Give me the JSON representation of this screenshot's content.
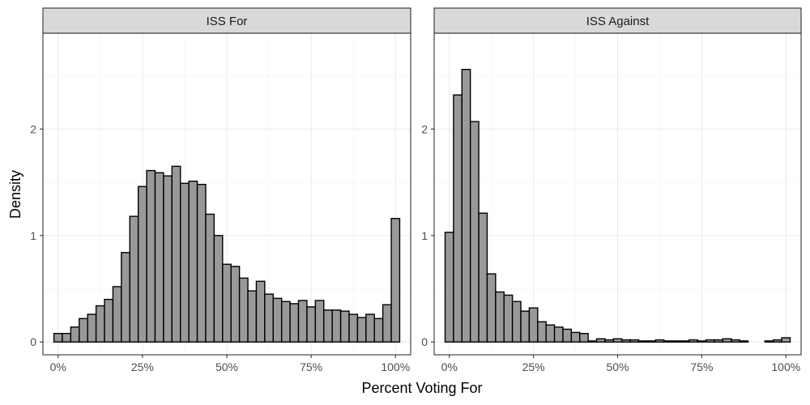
{
  "chart_data": {
    "type": "bar",
    "xlabel": "Percent Voting For",
    "ylabel": "Density",
    "xlim": [
      0,
      1
    ],
    "ylim": [
      0,
      2.75
    ],
    "x_ticks": [
      0,
      0.25,
      0.5,
      0.75,
      1
    ],
    "x_tick_labels": [
      "0%",
      "25%",
      "50%",
      "75%",
      "100%"
    ],
    "y_ticks": [
      0,
      1,
      2
    ],
    "y_tick_labels": [
      "0",
      "1",
      "2"
    ],
    "grid": true,
    "bin_width": 0.025,
    "bin_centers": [
      0,
      0.025,
      0.05,
      0.075,
      0.1,
      0.125,
      0.15,
      0.175,
      0.2,
      0.225,
      0.25,
      0.275,
      0.3,
      0.325,
      0.35,
      0.375,
      0.4,
      0.425,
      0.45,
      0.475,
      0.5,
      0.525,
      0.55,
      0.575,
      0.6,
      0.625,
      0.65,
      0.675,
      0.7,
      0.725,
      0.75,
      0.775,
      0.8,
      0.825,
      0.85,
      0.875,
      0.9,
      0.925,
      0.95,
      0.975,
      1
    ],
    "panels": [
      {
        "title": "ISS For",
        "values": [
          0.08,
          0.08,
          0.14,
          0.22,
          0.26,
          0.34,
          0.4,
          0.52,
          0.84,
          1.18,
          1.46,
          1.61,
          1.59,
          1.56,
          1.65,
          1.49,
          1.51,
          1.48,
          1.2,
          1.0,
          0.73,
          0.71,
          0.6,
          0.48,
          0.57,
          0.45,
          0.41,
          0.38,
          0.36,
          0.39,
          0.33,
          0.39,
          0.3,
          0.3,
          0.29,
          0.26,
          0.23,
          0.26,
          0.22,
          0.35,
          1.16
        ]
      },
      {
        "title": "ISS Against",
        "values": [
          1.03,
          2.32,
          2.56,
          2.07,
          1.21,
          0.64,
          0.47,
          0.44,
          0.38,
          0.29,
          0.32,
          0.19,
          0.16,
          0.14,
          0.12,
          0.09,
          0.08,
          0.01,
          0.03,
          0.02,
          0.03,
          0.02,
          0.02,
          0.01,
          0.01,
          0.02,
          0.01,
          0.01,
          0.01,
          0.02,
          0.01,
          0.02,
          0.02,
          0.03,
          0.02,
          0.01,
          0.0,
          0.0,
          0.01,
          0.02,
          0.04
        ]
      }
    ]
  }
}
